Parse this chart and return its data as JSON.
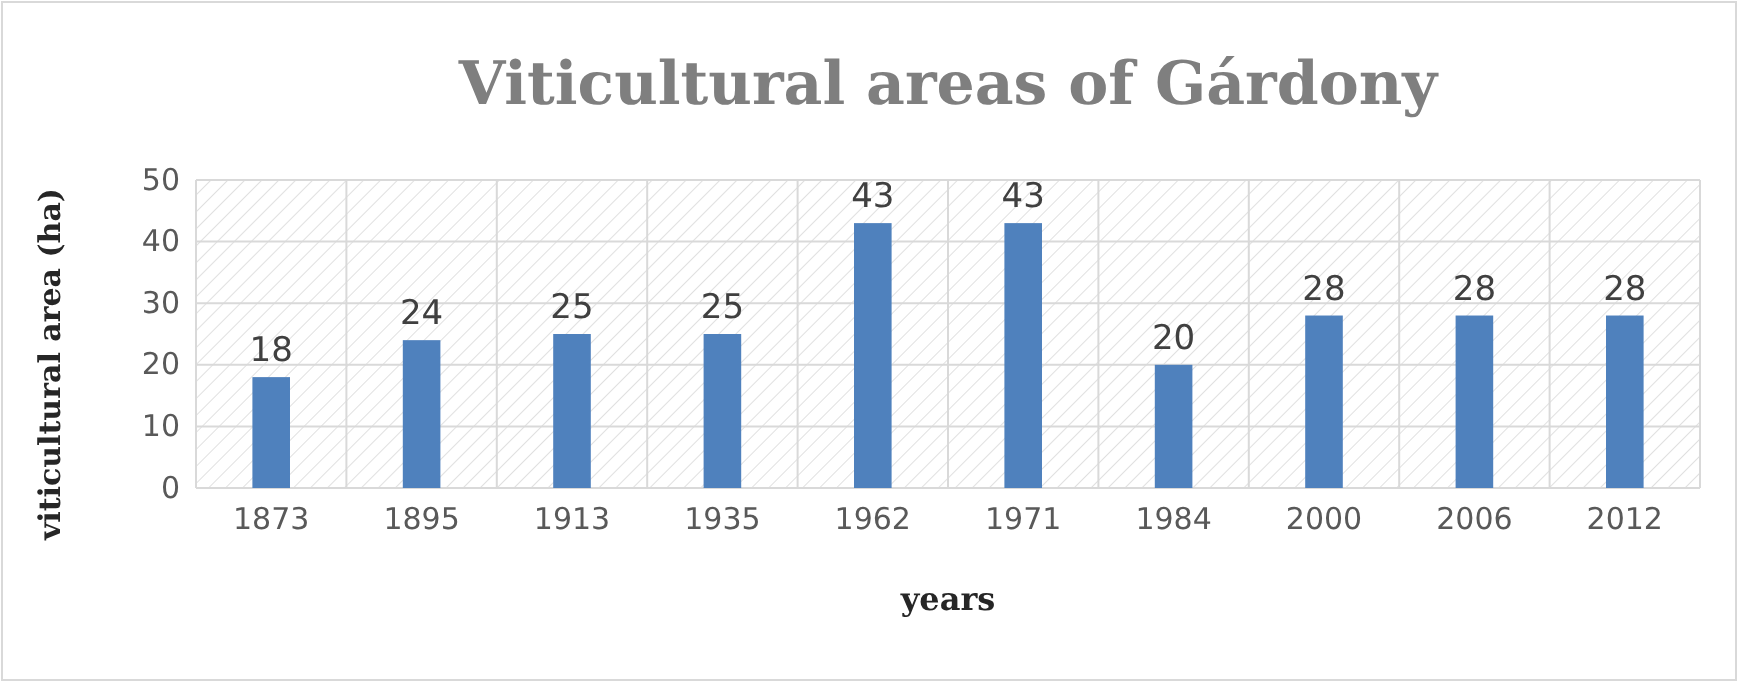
{
  "chart_data": {
    "type": "bar",
    "title": "Viticultural areas of Gárdony",
    "xlabel": "years",
    "ylabel": "viticultural area (ha)",
    "categories": [
      "1873",
      "1895",
      "1913",
      "1935",
      "1962",
      "1971",
      "1984",
      "2000",
      "2006",
      "2012"
    ],
    "values": [
      18,
      24,
      25,
      25,
      43,
      43,
      20,
      28,
      28,
      28
    ],
    "color": "#4f81bd",
    "ylim": [
      0,
      50
    ],
    "yticks": [
      0,
      10,
      20,
      30,
      40,
      50
    ],
    "grid": true,
    "data_labels": true
  }
}
